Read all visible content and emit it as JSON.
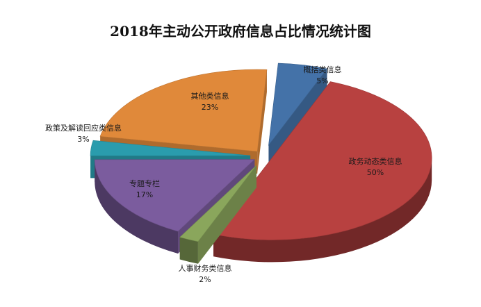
{
  "chart_data": {
    "type": "pie",
    "title": "2018年主动公开政府信息占比情况统计图",
    "slices": [
      {
        "label": "概括类信息",
        "value": 5,
        "pct_label": "5%",
        "color": "#4472a8"
      },
      {
        "label": "政务动态类信息",
        "value": 50,
        "pct_label": "50%",
        "color": "#b84140"
      },
      {
        "label": "人事财务类信息",
        "value": 2,
        "pct_label": "2%",
        "color": "#8aa65c"
      },
      {
        "label": "专题专栏",
        "value": 17,
        "pct_label": "17%",
        "color": "#7b5c9e"
      },
      {
        "label": "政策及解读回应类信息",
        "value": 3,
        "pct_label": "3%",
        "color": "#2a9cad"
      },
      {
        "label": "其他类信息",
        "value": 23,
        "pct_label": "23%",
        "color": "#e0893a"
      }
    ],
    "legend": "none",
    "three_d": true,
    "exploded": true
  }
}
